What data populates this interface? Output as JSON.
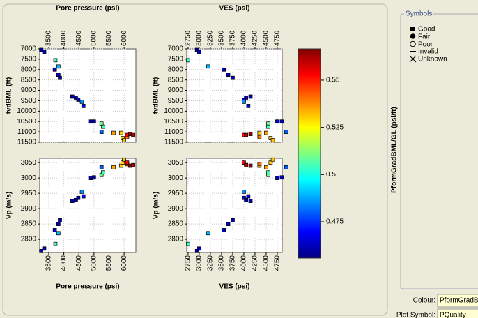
{
  "chart_data": [
    {
      "type": "scatter",
      "x_label": "Pore pressure (psi)",
      "y_label": "tvdBML (ft)",
      "x_axis": "top",
      "xlim": [
        3200,
        6390
      ],
      "ylim": [
        11500,
        7000
      ],
      "xticks": [
        3500,
        4000,
        4500,
        5000,
        5500,
        6000
      ],
      "yticks": [
        7000,
        7500,
        8000,
        8500,
        9000,
        9500,
        10000,
        10500,
        11000,
        11500
      ],
      "x": [
        3250,
        3350,
        3720,
        3700,
        3820,
        3820,
        3870,
        4280,
        4400,
        4480,
        4600,
        4650,
        4900,
        5000,
        5250,
        5300,
        5250,
        5650,
        5900,
        5950,
        6000,
        6100,
        6100,
        6200,
        6300
      ],
      "y": [
        7050,
        7150,
        7550,
        8000,
        7850,
        8250,
        8400,
        9300,
        9350,
        9450,
        9550,
        9750,
        10500,
        10500,
        10600,
        10750,
        11000,
        11050,
        11050,
        11300,
        11400,
        11250,
        11150,
        11100,
        11150
      ]
    },
    {
      "type": "scatter",
      "x_label": "VES (psi)",
      "y_label": "tvdBML (ft)",
      "x_axis": "top",
      "xlim": [
        2720,
        4860
      ],
      "ylim": [
        11500,
        7000
      ],
      "xticks": [
        2750,
        3000,
        3250,
        3500,
        3750,
        4000,
        4250,
        4500,
        4750
      ],
      "yticks": [
        7000,
        7500,
        8000,
        8500,
        9000,
        9500,
        10000,
        10500,
        11000,
        11500
      ],
      "x": [
        2950,
        3000,
        2750,
        3550,
        3200,
        3650,
        3750,
        4150,
        4050,
        4000,
        4000,
        4100,
        4750,
        4850,
        4550,
        4550,
        4950,
        4500,
        4350,
        4600,
        4650,
        4350,
        4000,
        4150,
        4050
      ],
      "y": [
        7050,
        7150,
        7550,
        8000,
        7850,
        8250,
        8400,
        9300,
        9350,
        9450,
        9550,
        9750,
        10500,
        10500,
        10600,
        10750,
        11000,
        11050,
        11050,
        11300,
        11400,
        11250,
        11150,
        11100,
        11150
      ]
    },
    {
      "type": "scatter",
      "x_label": "Pore pressure (psi)",
      "y_label": "Vp (m/s)",
      "x_axis": "bottom",
      "xlim": [
        3200,
        6390
      ],
      "ylim": [
        2757,
        3064
      ],
      "xticks": [
        3500,
        4000,
        4500,
        5000,
        5500,
        6000
      ],
      "yticks": [
        2800,
        2850,
        2900,
        2950,
        3000,
        3050
      ],
      "x": [
        3250,
        3350,
        3720,
        3700,
        3820,
        3820,
        3870,
        4280,
        4400,
        4480,
        4600,
        4650,
        4900,
        5000,
        5250,
        5300,
        5250,
        5650,
        5900,
        5950,
        6000,
        6100,
        6100,
        6200,
        6300
      ],
      "y": [
        2762,
        2770,
        2785,
        2830,
        2820,
        2850,
        2862,
        2925,
        2928,
        2935,
        2955,
        2940,
        3000,
        3002,
        3010,
        3018,
        3035,
        3035,
        3040,
        3050,
        3060,
        3045,
        3050,
        3040,
        3042
      ]
    },
    {
      "type": "scatter",
      "x_label": "VES (psi)",
      "y_label": "Vp (m/s)",
      "x_axis": "bottom",
      "xlim": [
        2720,
        4860
      ],
      "ylim": [
        2757,
        3064
      ],
      "xticks": [
        2750,
        3000,
        3250,
        3500,
        3750,
        4000,
        4250,
        4500,
        4750
      ],
      "yticks": [
        2800,
        2850,
        2900,
        2950,
        3000,
        3050
      ],
      "x": [
        2950,
        3000,
        2750,
        3550,
        3200,
        3650,
        3750,
        4150,
        4050,
        4000,
        4000,
        4100,
        4750,
        4850,
        4550,
        4550,
        4950,
        4500,
        4350,
        4600,
        4650,
        4350,
        4000,
        4150,
        4050
      ],
      "y": [
        2762,
        2770,
        2785,
        2830,
        2820,
        2850,
        2862,
        2925,
        2928,
        2935,
        2955,
        2940,
        3000,
        3002,
        3010,
        3018,
        3035,
        3035,
        3040,
        3050,
        3060,
        3045,
        3050,
        3040,
        3042
      ]
    }
  ],
  "colorbar": {
    "label": "PformGradBML/GL (psi/ft)",
    "lim": [
      0.4558,
      0.5666
    ],
    "ticks": [
      0.55,
      0.525,
      0.5,
      0.475
    ],
    "values": [
      0.46,
      0.462,
      0.505,
      0.463,
      0.49,
      0.462,
      0.462,
      0.46,
      0.462,
      0.462,
      0.485,
      0.47,
      0.462,
      0.462,
      0.51,
      0.505,
      0.48,
      0.535,
      0.53,
      0.53,
      0.532,
      0.54,
      0.552,
      0.565,
      0.56
    ]
  },
  "symbols": {
    "title": "Symbols",
    "items": [
      "Good",
      "Fair",
      "Poor",
      "Invalid",
      "Unknown"
    ]
  },
  "fields": [
    {
      "label": "Colour:",
      "value": "PformGradB..."
    },
    {
      "label": "Plot Symbol:",
      "value": "PQuality"
    }
  ]
}
